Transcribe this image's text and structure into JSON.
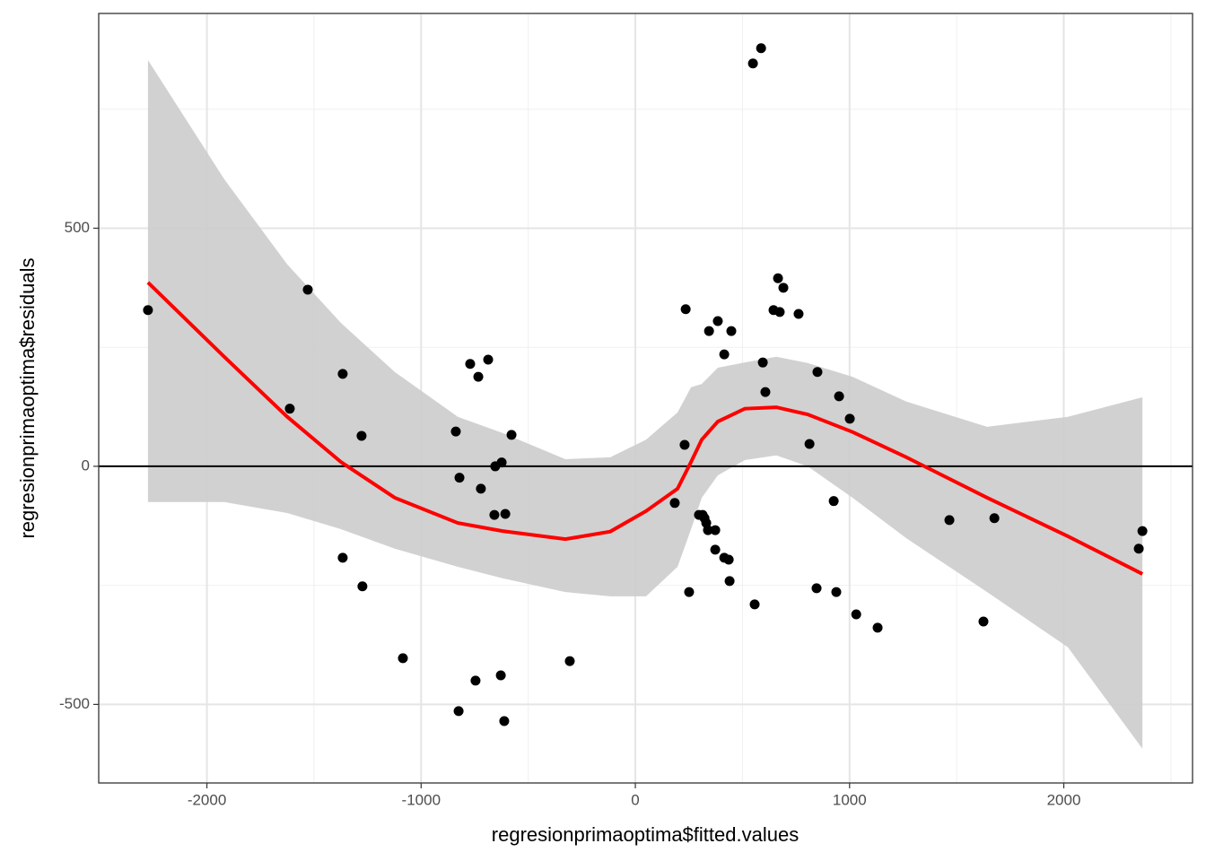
{
  "chart_data": {
    "type": "scatter",
    "xlabel": "regresionprimaoptima$fitted.values",
    "ylabel": "regresionprimaoptima$residuals",
    "xlim": [
      -2505,
      2601
    ],
    "ylim": [
      -665,
      951
    ],
    "xticks": [
      -2000,
      -1000,
      0,
      1000,
      2000
    ],
    "yticks": [
      -500,
      0,
      500
    ],
    "xminor_ticks": [
      -1500,
      -500,
      500,
      1500,
      2500
    ],
    "yminor_ticks": [
      -250,
      250,
      750
    ],
    "grid": true,
    "hline": 0,
    "points": {
      "color": "#000000",
      "x": [
        -2275,
        -1613,
        -1529,
        -1366,
        -1366,
        -1278,
        -1274,
        -1085,
        -838,
        -825,
        -821,
        -771,
        -746,
        -733,
        -721,
        -687,
        -658,
        -654,
        -628,
        -624,
        -612,
        -607,
        -578,
        -306,
        184,
        230,
        235,
        251,
        297,
        314,
        323,
        331,
        339,
        344,
        373,
        373,
        385,
        415,
        415,
        436,
        440,
        448,
        549,
        557,
        587,
        595,
        607,
        645,
        666,
        674,
        691,
        762,
        813,
        846,
        850,
        926,
        938,
        951,
        1001,
        1031,
        1131,
        1466,
        1625,
        1676,
        2350,
        2367
      ],
      "y": [
        328,
        121,
        371,
        194,
        -192,
        64,
        -252,
        -403,
        73,
        -514,
        -24,
        215,
        -450,
        188,
        -47,
        224,
        -102,
        0,
        -439,
        8,
        -535,
        -100,
        66,
        -409,
        -77,
        45,
        330,
        -264,
        -102,
        -102,
        -109,
        -119,
        -134,
        284,
        -134,
        -175,
        305,
        235,
        -192,
        -196,
        -241,
        284,
        846,
        -290,
        878,
        218,
        156,
        328,
        395,
        324,
        375,
        320,
        47,
        -256,
        198,
        -73,
        -264,
        147,
        100,
        -311,
        -339,
        -113,
        -326,
        -109,
        -173,
        -136
      ]
    },
    "smooth": {
      "color": "#ff0000",
      "band_color": "#cccccc",
      "x": [
        -2275,
        -1919,
        -1625,
        -1374,
        -1123,
        -829,
        -620,
        -327,
        -117,
        50,
        197,
        260,
        310,
        385,
        511,
        658,
        804,
        1014,
        1265,
        1642,
        2019,
        2367
      ],
      "y": [
        386,
        230,
        104,
        9,
        -66,
        -119,
        -136,
        -153,
        -137,
        -94,
        -47,
        9,
        56,
        94,
        121,
        124,
        109,
        72,
        19,
        -66,
        -147,
        -226
      ],
      "lower": [
        -75,
        -75,
        -98,
        -132,
        -173,
        -211,
        -235,
        -264,
        -273,
        -273,
        -211,
        -132,
        -66,
        -19,
        13,
        23,
        0,
        -66,
        -151,
        -264,
        -380,
        -593
      ],
      "upper": [
        853,
        603,
        424,
        301,
        198,
        104,
        70,
        15,
        19,
        56,
        113,
        166,
        173,
        207,
        218,
        230,
        217,
        188,
        136,
        83,
        104,
        145
      ]
    }
  }
}
